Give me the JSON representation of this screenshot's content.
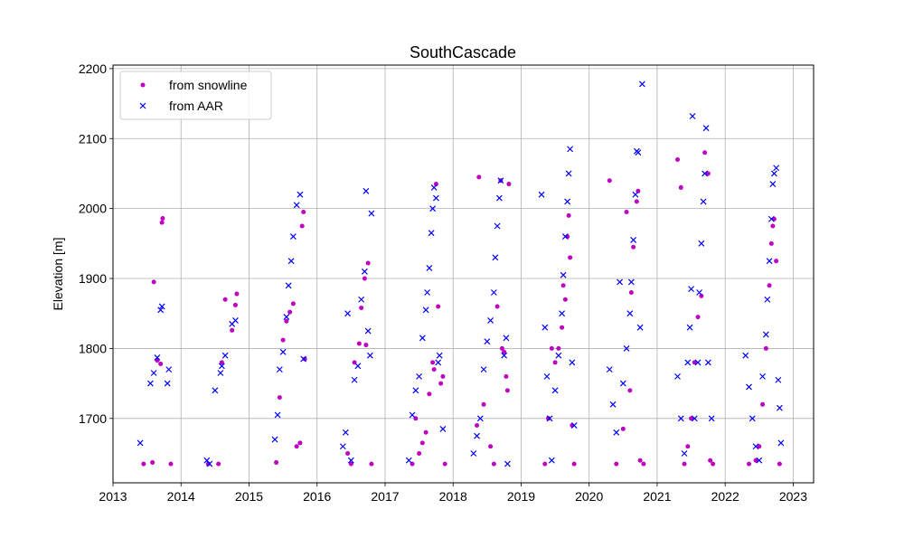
{
  "chart_data": {
    "type": "scatter",
    "title": "SouthCascade",
    "xlabel": "",
    "ylabel": "Elevation [m]",
    "xlim": [
      2013.0,
      2023.3
    ],
    "ylim": [
      1608,
      2205
    ],
    "x_ticks": [
      "2013",
      "2014",
      "2015",
      "2016",
      "2017",
      "2018",
      "2019",
      "2020",
      "2021",
      "2022",
      "2023"
    ],
    "y_ticks": [
      "1700",
      "1800",
      "1900",
      "2000",
      "2100",
      "2200"
    ],
    "grid": true,
    "legend_position": "top-left",
    "series": [
      {
        "name": "from snowline",
        "marker": "circle",
        "color": "#bf00bf",
        "points": [
          [
            2013.45,
            1635
          ],
          [
            2013.58,
            1637
          ],
          [
            2013.6,
            1895
          ],
          [
            2013.65,
            1783
          ],
          [
            2013.7,
            1778
          ],
          [
            2013.72,
            1980
          ],
          [
            2013.73,
            1986
          ],
          [
            2013.85,
            1635
          ],
          [
            2014.4,
            1635
          ],
          [
            2014.55,
            1635
          ],
          [
            2014.6,
            1780
          ],
          [
            2014.65,
            1870
          ],
          [
            2014.75,
            1826
          ],
          [
            2014.8,
            1862
          ],
          [
            2014.82,
            1878
          ],
          [
            2015.4,
            1637
          ],
          [
            2015.45,
            1730
          ],
          [
            2015.5,
            1812
          ],
          [
            2015.55,
            1839
          ],
          [
            2015.6,
            1852
          ],
          [
            2015.65,
            1864
          ],
          [
            2015.7,
            1660
          ],
          [
            2015.75,
            1665
          ],
          [
            2015.78,
            1975
          ],
          [
            2015.8,
            1995
          ],
          [
            2015.82,
            1785
          ],
          [
            2016.45,
            1650
          ],
          [
            2016.5,
            1635
          ],
          [
            2016.55,
            1780
          ],
          [
            2016.62,
            1807
          ],
          [
            2016.65,
            1858
          ],
          [
            2016.7,
            1900
          ],
          [
            2016.72,
            1805
          ],
          [
            2016.75,
            1922
          ],
          [
            2016.8,
            1635
          ],
          [
            2017.4,
            1635
          ],
          [
            2017.45,
            1700
          ],
          [
            2017.5,
            1650
          ],
          [
            2017.55,
            1665
          ],
          [
            2017.6,
            1680
          ],
          [
            2017.65,
            1735
          ],
          [
            2017.7,
            1780
          ],
          [
            2017.72,
            1770
          ],
          [
            2017.75,
            2035
          ],
          [
            2017.78,
            1860
          ],
          [
            2017.82,
            1750
          ],
          [
            2017.85,
            1760
          ],
          [
            2017.88,
            1635
          ],
          [
            2018.35,
            1690
          ],
          [
            2018.38,
            2045
          ],
          [
            2018.45,
            1720
          ],
          [
            2018.55,
            1660
          ],
          [
            2018.6,
            1635
          ],
          [
            2018.65,
            1860
          ],
          [
            2018.7,
            2040
          ],
          [
            2018.72,
            1800
          ],
          [
            2018.75,
            1795
          ],
          [
            2018.78,
            1760
          ],
          [
            2018.8,
            1740
          ],
          [
            2018.82,
            2035
          ],
          [
            2019.35,
            1635
          ],
          [
            2019.4,
            1700
          ],
          [
            2019.45,
            1800
          ],
          [
            2019.5,
            1780
          ],
          [
            2019.55,
            1800
          ],
          [
            2019.6,
            1830
          ],
          [
            2019.62,
            1890
          ],
          [
            2019.65,
            1870
          ],
          [
            2019.68,
            1960
          ],
          [
            2019.7,
            1990
          ],
          [
            2019.72,
            1930
          ],
          [
            2019.75,
            1690
          ],
          [
            2019.78,
            1635
          ],
          [
            2020.3,
            2040
          ],
          [
            2020.4,
            1635
          ],
          [
            2020.5,
            1685
          ],
          [
            2020.55,
            1995
          ],
          [
            2020.6,
            1740
          ],
          [
            2020.62,
            1880
          ],
          [
            2020.65,
            1945
          ],
          [
            2020.7,
            2010
          ],
          [
            2020.72,
            2025
          ],
          [
            2020.75,
            1640
          ],
          [
            2020.8,
            1635
          ],
          [
            2021.3,
            2070
          ],
          [
            2021.35,
            2030
          ],
          [
            2021.4,
            1635
          ],
          [
            2021.45,
            1660
          ],
          [
            2021.5,
            1700
          ],
          [
            2021.55,
            1780
          ],
          [
            2021.6,
            1845
          ],
          [
            2021.65,
            1875
          ],
          [
            2021.7,
            2080
          ],
          [
            2021.75,
            2050
          ],
          [
            2021.78,
            1640
          ],
          [
            2021.82,
            1635
          ],
          [
            2022.35,
            1635
          ],
          [
            2022.45,
            1640
          ],
          [
            2022.5,
            1660
          ],
          [
            2022.55,
            1720
          ],
          [
            2022.6,
            1800
          ],
          [
            2022.65,
            1890
          ],
          [
            2022.68,
            1950
          ],
          [
            2022.7,
            1975
          ],
          [
            2022.72,
            1985
          ],
          [
            2022.75,
            1925
          ],
          [
            2022.8,
            1635
          ]
        ]
      },
      {
        "name": "from AAR",
        "marker": "x",
        "color": "#0000ff",
        "points": [
          [
            2013.4,
            1665
          ],
          [
            2013.55,
            1750
          ],
          [
            2013.6,
            1765
          ],
          [
            2013.65,
            1787
          ],
          [
            2013.7,
            1855
          ],
          [
            2013.72,
            1860
          ],
          [
            2013.8,
            1750
          ],
          [
            2013.82,
            1770
          ],
          [
            2014.38,
            1640
          ],
          [
            2014.42,
            1635
          ],
          [
            2014.5,
            1740
          ],
          [
            2014.58,
            1765
          ],
          [
            2014.6,
            1775
          ],
          [
            2014.65,
            1790
          ],
          [
            2014.75,
            1835
          ],
          [
            2014.8,
            1840
          ],
          [
            2015.38,
            1670
          ],
          [
            2015.42,
            1705
          ],
          [
            2015.45,
            1770
          ],
          [
            2015.5,
            1795
          ],
          [
            2015.55,
            1845
          ],
          [
            2015.58,
            1890
          ],
          [
            2015.62,
            1925
          ],
          [
            2015.65,
            1960
          ],
          [
            2015.7,
            2005
          ],
          [
            2015.75,
            2020
          ],
          [
            2015.8,
            1785
          ],
          [
            2016.38,
            1660
          ],
          [
            2016.42,
            1680
          ],
          [
            2016.45,
            1850
          ],
          [
            2016.5,
            1640
          ],
          [
            2016.55,
            1755
          ],
          [
            2016.6,
            1775
          ],
          [
            2016.65,
            1870
          ],
          [
            2016.7,
            1910
          ],
          [
            2016.72,
            2025
          ],
          [
            2016.75,
            1825
          ],
          [
            2016.78,
            1790
          ],
          [
            2016.8,
            1993
          ],
          [
            2017.35,
            1640
          ],
          [
            2017.4,
            1705
          ],
          [
            2017.45,
            1740
          ],
          [
            2017.5,
            1760
          ],
          [
            2017.55,
            1815
          ],
          [
            2017.6,
            1855
          ],
          [
            2017.62,
            1880
          ],
          [
            2017.65,
            1915
          ],
          [
            2017.68,
            1965
          ],
          [
            2017.7,
            2000
          ],
          [
            2017.72,
            2030
          ],
          [
            2017.75,
            2015
          ],
          [
            2017.78,
            1780
          ],
          [
            2017.8,
            1790
          ],
          [
            2017.85,
            1685
          ],
          [
            2018.3,
            1650
          ],
          [
            2018.35,
            1675
          ],
          [
            2018.4,
            1700
          ],
          [
            2018.45,
            1770
          ],
          [
            2018.5,
            1810
          ],
          [
            2018.55,
            1840
          ],
          [
            2018.6,
            1880
          ],
          [
            2018.62,
            1930
          ],
          [
            2018.65,
            1975
          ],
          [
            2018.68,
            2015
          ],
          [
            2018.7,
            2040
          ],
          [
            2018.75,
            1790
          ],
          [
            2018.78,
            1815
          ],
          [
            2018.8,
            1635
          ],
          [
            2019.3,
            2020
          ],
          [
            2019.35,
            1830
          ],
          [
            2019.38,
            1760
          ],
          [
            2019.42,
            1700
          ],
          [
            2019.45,
            1640
          ],
          [
            2019.5,
            1740
          ],
          [
            2019.55,
            1790
          ],
          [
            2019.6,
            1850
          ],
          [
            2019.62,
            1905
          ],
          [
            2019.65,
            1960
          ],
          [
            2019.68,
            2010
          ],
          [
            2019.7,
            2050
          ],
          [
            2019.72,
            2085
          ],
          [
            2019.75,
            1780
          ],
          [
            2019.78,
            1690
          ],
          [
            2020.3,
            1770
          ],
          [
            2020.35,
            1720
          ],
          [
            2020.4,
            1680
          ],
          [
            2020.45,
            1895
          ],
          [
            2020.5,
            1750
          ],
          [
            2020.55,
            1800
          ],
          [
            2020.6,
            1850
          ],
          [
            2020.62,
            1895
          ],
          [
            2020.65,
            1955
          ],
          [
            2020.68,
            2020
          ],
          [
            2020.7,
            2082
          ],
          [
            2020.72,
            2080
          ],
          [
            2020.75,
            1830
          ],
          [
            2020.78,
            2178
          ],
          [
            2021.3,
            1760
          ],
          [
            2021.35,
            1700
          ],
          [
            2021.4,
            1650
          ],
          [
            2021.45,
            1780
          ],
          [
            2021.48,
            1830
          ],
          [
            2021.5,
            1885
          ],
          [
            2021.52,
            2132
          ],
          [
            2021.55,
            1700
          ],
          [
            2021.6,
            1780
          ],
          [
            2021.62,
            1880
          ],
          [
            2021.65,
            1950
          ],
          [
            2021.68,
            2010
          ],
          [
            2021.7,
            2050
          ],
          [
            2021.72,
            2115
          ],
          [
            2021.75,
            1780
          ],
          [
            2021.8,
            1700
          ],
          [
            2022.3,
            1790
          ],
          [
            2022.35,
            1745
          ],
          [
            2022.4,
            1700
          ],
          [
            2022.45,
            1660
          ],
          [
            2022.5,
            1640
          ],
          [
            2022.55,
            1760
          ],
          [
            2022.6,
            1820
          ],
          [
            2022.62,
            1870
          ],
          [
            2022.65,
            1925
          ],
          [
            2022.68,
            1985
          ],
          [
            2022.7,
            2035
          ],
          [
            2022.72,
            2050
          ],
          [
            2022.75,
            2058
          ],
          [
            2022.78,
            1755
          ],
          [
            2022.8,
            1715
          ],
          [
            2022.82,
            1665
          ]
        ]
      }
    ]
  }
}
